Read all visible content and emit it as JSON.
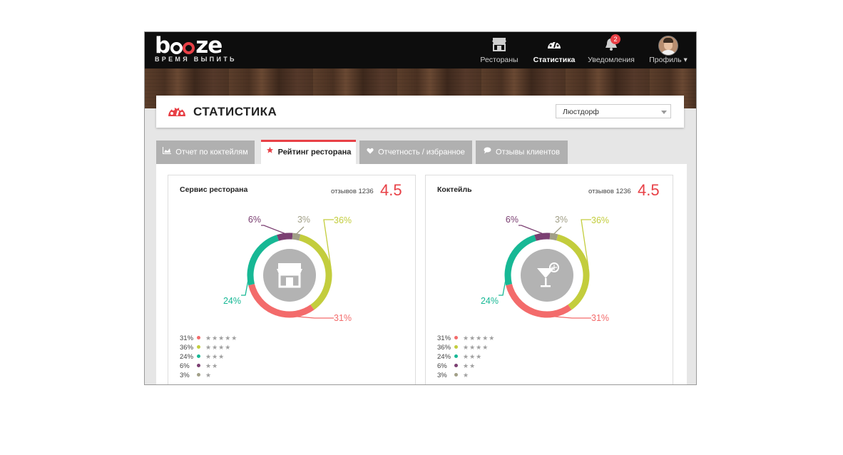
{
  "app": {
    "logo_text": "booze",
    "tagline": "ВРЕМЯ ВЫПИТЬ"
  },
  "nav": {
    "items": [
      {
        "label": "Рестораны",
        "icon": "storefront-icon"
      },
      {
        "label": "Статистика",
        "icon": "speedometer-icon",
        "active": true
      },
      {
        "label": "Уведомления",
        "icon": "bell-icon",
        "badge": "2"
      },
      {
        "label": "Профиль ▾",
        "icon": "avatar"
      }
    ]
  },
  "page": {
    "title": "СТАТИСТИКА",
    "title_icon": "speedometer-icon",
    "location_select": "Люстдорф"
  },
  "tabs": [
    {
      "label": "Отчет по коктейлям",
      "icon": "area-chart-icon"
    },
    {
      "label": "Рейтинг ресторана",
      "icon": "star-icon",
      "active": true
    },
    {
      "label": "Отчетность / избранное",
      "icon": "heart-icon"
    },
    {
      "label": "Отзывы клиентов",
      "icon": "speech-bubble-icon"
    }
  ],
  "colors": {
    "accent": "#e84046",
    "five_star": "#f36b6b",
    "four_star": "#c3cd3d",
    "three_star": "#17b895",
    "two_star": "#7b3f72",
    "one_star": "#a19f87"
  },
  "cards": [
    {
      "name": "Сервис ресторана",
      "reviews_label": "отзывов 1236",
      "score": "4.5",
      "center_icon": "storefront-icon",
      "chart_data": {
        "type": "pie",
        "segments": [
          {
            "label": "36%",
            "value": 36,
            "stars": 4
          },
          {
            "label": "31%",
            "value": 31,
            "stars": 5
          },
          {
            "label": "24%",
            "value": 24,
            "stars": 3
          },
          {
            "label": "6%",
            "value": 6,
            "stars": 2
          },
          {
            "label": "3%",
            "value": 3,
            "stars": 1
          }
        ]
      },
      "legend": [
        {
          "pct": "31%",
          "stars": "★★★★★"
        },
        {
          "pct": "36%",
          "stars": "★★★★"
        },
        {
          "pct": "24%",
          "stars": "★★★"
        },
        {
          "pct": "6%",
          "stars": "★★"
        },
        {
          "pct": "3%",
          "stars": "★"
        }
      ]
    },
    {
      "name": "Коктейль",
      "reviews_label": "отзывов 1236",
      "score": "4.5",
      "center_icon": "cocktail-glass-icon",
      "chart_data": {
        "type": "pie",
        "segments": [
          {
            "label": "36%",
            "value": 36,
            "stars": 4
          },
          {
            "label": "31%",
            "value": 31,
            "stars": 5
          },
          {
            "label": "24%",
            "value": 24,
            "stars": 3
          },
          {
            "label": "6%",
            "value": 6,
            "stars": 2
          },
          {
            "label": "3%",
            "value": 3,
            "stars": 1
          }
        ]
      },
      "legend": [
        {
          "pct": "31%",
          "stars": "★★★★★"
        },
        {
          "pct": "36%",
          "stars": "★★★★"
        },
        {
          "pct": "24%",
          "stars": "★★★"
        },
        {
          "pct": "6%",
          "stars": "★★"
        },
        {
          "pct": "3%",
          "stars": "★"
        }
      ]
    }
  ]
}
